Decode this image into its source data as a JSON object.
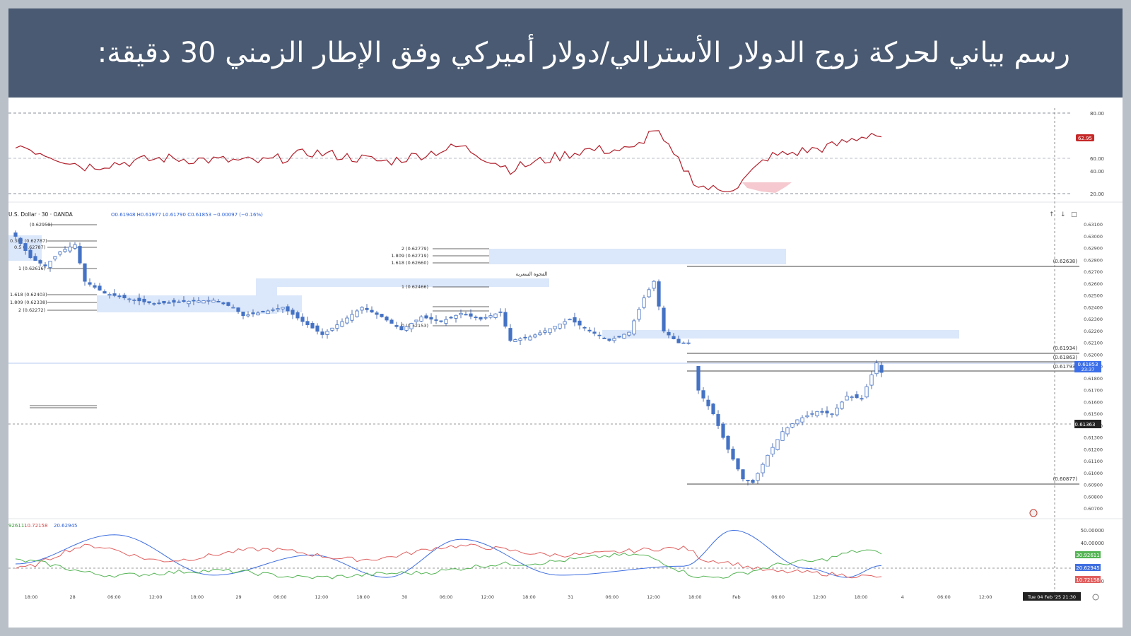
{
  "title": "رسم بياني لحركة زوج الدولار الأسترالي/دولار أميركي وفق الإطار الزمني 30 دقيقة:",
  "colors": {
    "candle": "#4472c4",
    "zone": "#dbe7fa",
    "rsi": "#b11f2b",
    "adx_blue": "#3f6fe0",
    "adx_red": "#e06060",
    "adx_green": "#54b454",
    "price_tag": "#3b6ee8",
    "rsi_tag": "#c62828"
  },
  "header": {
    "symbol": "U.S. Dollar · 30 · OANDA",
    "ohlc": "O0.61948  H0.61977  L0.61790  C0.61853  −0.00097 (−0.16%)"
  },
  "rsi_panel": {
    "ticks": [
      "80.00",
      "60.00",
      "40.00",
      "20.00"
    ],
    "current_value": "62.95"
  },
  "adx_panel": {
    "legend_values": [
      "92611",
      "10.72158",
      "20.62945"
    ],
    "ticks": [
      "50.00000",
      "40.00000",
      "10.00000"
    ],
    "tags": [
      "30.92611",
      "20.62945",
      "10.72158"
    ]
  },
  "price_axis": {
    "ticks": [
      "0.63100",
      "0.63000",
      "0.62900",
      "0.62800",
      "0.62700",
      "0.62600",
      "0.62500",
      "0.62400",
      "0.62300",
      "0.62200",
      "0.62100",
      "0.62000",
      "0.61900",
      "0.61800",
      "0.61700",
      "0.61600",
      "0.61500",
      "0.61400",
      "0.61300",
      "0.61200",
      "0.61100",
      "0.61000",
      "0.60900",
      "0.60800",
      "0.60700"
    ],
    "current_price": "0.61853",
    "countdown": "23:37",
    "crosshair_price": "0.61363"
  },
  "time_axis": {
    "labels": [
      "18:00",
      "28",
      "06:00",
      "12:00",
      "18:00",
      "29",
      "06:00",
      "12:00",
      "18:00",
      "30",
      "06:00",
      "12:00",
      "18:00",
      "31",
      "06:00",
      "12:00",
      "18:00",
      "Feb",
      "06:00",
      "12:00",
      "18:00",
      "4",
      "06:00",
      "12:00"
    ],
    "crosshair_time": "Tue 04 Feb '25   21:30"
  },
  "fib_left": [
    "0.382 (0.62787)",
    "0.5 (0.62787)",
    "1 (0.62616)",
    "1.618 (0.62403)",
    "1.809 (0.62338)",
    "2 (0.62272)",
    "(0.62959)"
  ],
  "fib_center": [
    "2 (0.62779)",
    "1.809 (0.62719)",
    "1.618 (0.62660)",
    "1 (0.62466)",
    "0 (0.62153)"
  ],
  "levels_right": [
    "(0.62638)",
    "(0.61934)",
    "(0.61863)",
    "(0.61793)",
    "(0.60877)"
  ],
  "gap_label": "الفجوة السعرية",
  "chart_data": {
    "type": "candlestick",
    "symbol": "AUD/USD",
    "timeframe": "30",
    "price_range": [
      0.6065,
      0.632
    ],
    "x_labels": [
      "18:00",
      "28",
      "06:00",
      "12:00",
      "18:00",
      "29",
      "06:00",
      "12:00",
      "18:00",
      "30",
      "06:00",
      "12:00",
      "18:00",
      "31",
      "06:00",
      "12:00",
      "18:00",
      "Feb",
      "06:00",
      "12:00",
      "18:00",
      "4",
      "06:00",
      "12:00"
    ],
    "close_path": [
      [
        0,
        0.63
      ],
      [
        3,
        0.6282
      ],
      [
        6,
        0.6275
      ],
      [
        9,
        0.6287
      ],
      [
        12,
        0.6293
      ],
      [
        14,
        0.6262
      ],
      [
        18,
        0.6252
      ],
      [
        22,
        0.6248
      ],
      [
        28,
        0.6243
      ],
      [
        34,
        0.6245
      ],
      [
        40,
        0.6246
      ],
      [
        44,
        0.624
      ],
      [
        46,
        0.6233
      ],
      [
        50,
        0.6236
      ],
      [
        54,
        0.624
      ],
      [
        58,
        0.6228
      ],
      [
        62,
        0.6217
      ],
      [
        66,
        0.6228
      ],
      [
        70,
        0.624
      ],
      [
        74,
        0.6232
      ],
      [
        78,
        0.6221
      ],
      [
        82,
        0.6232
      ],
      [
        86,
        0.6228
      ],
      [
        90,
        0.6235
      ],
      [
        94,
        0.623
      ],
      [
        98,
        0.6236
      ],
      [
        100,
        0.6212
      ],
      [
        104,
        0.6215
      ],
      [
        108,
        0.6222
      ],
      [
        112,
        0.623
      ],
      [
        116,
        0.622
      ],
      [
        120,
        0.6212
      ],
      [
        124,
        0.6219
      ],
      [
        127,
        0.6248
      ],
      [
        129,
        0.6262
      ],
      [
        131,
        0.622
      ],
      [
        134,
        0.621
      ],
      [
        136,
        0.621
      ],
      [
        138,
        0.617
      ],
      [
        141,
        0.615
      ],
      [
        144,
        0.612
      ],
      [
        147,
        0.6095
      ],
      [
        149,
        0.6092
      ],
      [
        152,
        0.6115
      ],
      [
        155,
        0.6135
      ],
      [
        158,
        0.6145
      ],
      [
        162,
        0.6152
      ],
      [
        165,
        0.615
      ],
      [
        168,
        0.6165
      ],
      [
        171,
        0.6163
      ],
      [
        173,
        0.6183
      ],
      [
        174,
        0.6193
      ],
      [
        175,
        0.6185
      ]
    ],
    "rsi_range": [
      10,
      90
    ],
    "rsi_path": [
      [
        0,
        57
      ],
      [
        14,
        38
      ],
      [
        30,
        45
      ],
      [
        50,
        42
      ],
      [
        60,
        50
      ],
      [
        75,
        42
      ],
      [
        90,
        55
      ],
      [
        100,
        36
      ],
      [
        115,
        52
      ],
      [
        125,
        52
      ],
      [
        129,
        70
      ],
      [
        133,
        47
      ],
      [
        138,
        22
      ],
      [
        142,
        18
      ],
      [
        146,
        22
      ],
      [
        152,
        46
      ],
      [
        165,
        55
      ],
      [
        173,
        66
      ],
      [
        175,
        63
      ]
    ],
    "adx_series": [
      {
        "values": [
          [
            0,
            22
          ],
          [
            20,
            48
          ],
          [
            40,
            12
          ],
          [
            60,
            30
          ],
          [
            75,
            10
          ],
          [
            90,
            44
          ],
          [
            110,
            12
          ],
          [
            135,
            20
          ],
          [
            145,
            52
          ],
          [
            160,
            18
          ],
          [
            168,
            10
          ],
          [
            175,
            20.6
          ]
        ]
      },
      {
        "values": [
          [
            0,
            18
          ],
          [
            15,
            38
          ],
          [
            30,
            25
          ],
          [
            50,
            35
          ],
          [
            70,
            26
          ],
          [
            90,
            38
          ],
          [
            110,
            30
          ],
          [
            135,
            36
          ],
          [
            140,
            25
          ],
          [
            155,
            15
          ],
          [
            175,
            10.7
          ]
        ]
      },
      {
        "values": [
          [
            0,
            25
          ],
          [
            20,
            12
          ],
          [
            40,
            16
          ],
          [
            60,
            10
          ],
          [
            80,
            14
          ],
          [
            100,
            22
          ],
          [
            125,
            30
          ],
          [
            140,
            10
          ],
          [
            160,
            24
          ],
          [
            172,
            34
          ],
          [
            175,
            30.9
          ]
        ]
      }
    ]
  }
}
